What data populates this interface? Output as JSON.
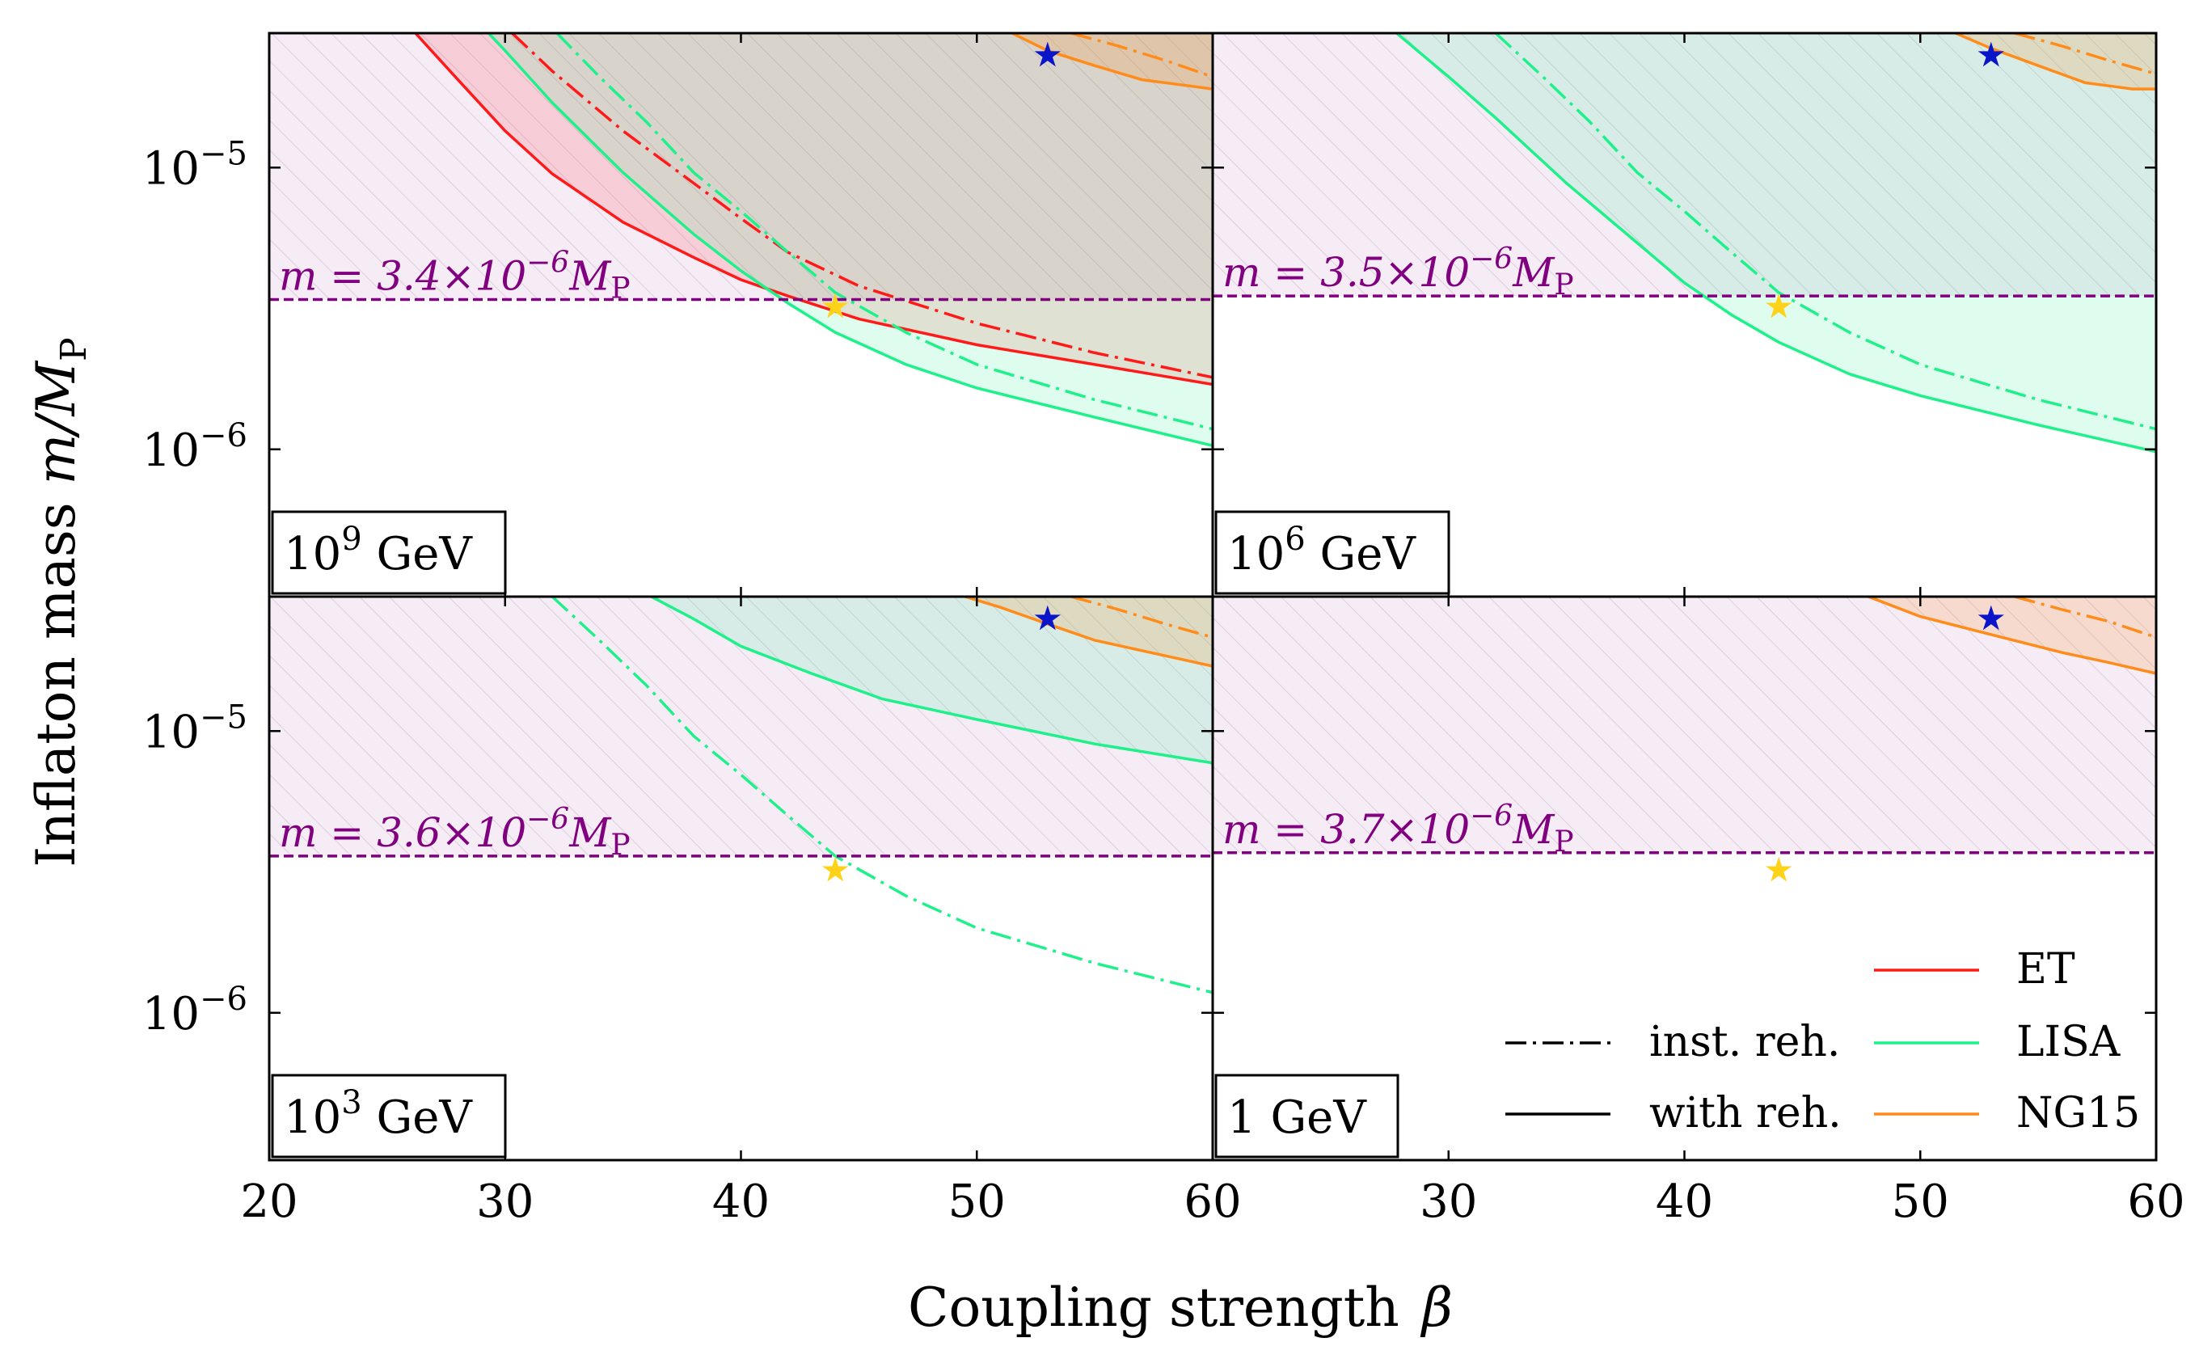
{
  "chart_data": {
    "type": "line",
    "layout": "2x2 panels, shared axes",
    "xlabel": "Coupling strength",
    "xlabel_symbol": "β",
    "ylabel": "Inflaton mass",
    "ylabel_symbol": "m/M",
    "ylabel_symbol_sub": "P",
    "xlim": [
      20,
      60
    ],
    "ylim": [
      3e-07,
      3e-05
    ],
    "yscale": "log",
    "x_ticks": [
      "20",
      "30",
      "40",
      "50",
      "60"
    ],
    "y_ticks": [
      {
        "base": "10",
        "exp": "−5",
        "value": 1e-05
      },
      {
        "base": "10",
        "exp": "−6",
        "value": 1e-06
      }
    ],
    "colors": {
      "ET": "#ff1a1a",
      "LISA": "#1ef08a",
      "NG15": "#ff8c1a",
      "reference": "#800080",
      "star_blue": "#0a14c8",
      "star_gold": "#ffd21a",
      "excluded_fill": "#f3e6f3"
    },
    "legend": {
      "placement": "bottom-right",
      "styles": [
        {
          "label": "inst. reh.",
          "dash": "dashdot"
        },
        {
          "label": "with reh.",
          "dash": "solid"
        }
      ],
      "detectors": [
        {
          "label": "ET",
          "color": "#ff1a1a"
        },
        {
          "label": "LISA",
          "color": "#1ef08a"
        },
        {
          "label": "NG15",
          "color": "#ff8c1a"
        }
      ]
    },
    "stars": [
      {
        "name": "blue-star",
        "x": 53,
        "y": 2.5e-05,
        "color": "#0a14c8"
      },
      {
        "name": "gold-star",
        "x": 44,
        "y": 3.2e-06,
        "color": "#ffd21a"
      }
    ],
    "panels": [
      {
        "tag_base": "10",
        "tag_exp": "9",
        "tag_unit": " GeV",
        "reference_prefix": "m = 3.4×10",
        "reference_exp": "−6",
        "reference_suffix": "M",
        "reference_sub": "P",
        "reference_value": 3.4e-06,
        "series": [
          {
            "name": "ET",
            "style": "solid",
            "color": "#ff1a1a",
            "x": [
              26.2,
              28,
              30,
              32,
              35,
              38,
              40,
              42,
              45,
              50,
              55,
              60
            ],
            "y": [
              3e-05,
              2.05e-05,
              1.35e-05,
              9.5e-06,
              6.4e-06,
              4.8e-06,
              4e-06,
              3.5e-06,
              2.9e-06,
              2.35e-06,
              2e-06,
              1.7e-06
            ]
          },
          {
            "name": "ET",
            "style": "dashdot",
            "color": "#ff1a1a",
            "x": [
              30.3,
              32,
              35,
              38,
              40,
              42,
              45,
              50,
              55,
              60
            ],
            "y": [
              3e-05,
              2.2e-05,
              1.35e-05,
              8.8e-06,
              6.6e-06,
              5e-06,
              3.8e-06,
              2.8e-06,
              2.2e-06,
              1.8e-06
            ]
          },
          {
            "name": "LISA",
            "style": "solid",
            "color": "#1ef08a",
            "x": [
              29.3,
              30,
              32,
              35,
              38,
              40,
              42,
              44,
              47,
              50,
              55,
              60
            ],
            "y": [
              3e-05,
              2.6e-05,
              1.7e-05,
              9.6e-06,
              5.8e-06,
              4.3e-06,
              3.3e-06,
              2.6e-06,
              2e-06,
              1.65e-06,
              1.3e-06,
              1.03e-06
            ]
          },
          {
            "name": "LISA",
            "style": "dashdot",
            "color": "#1ef08a",
            "x": [
              32.2,
              34,
              36,
              38,
              40,
              42,
              44,
              47,
              50,
              55,
              60
            ],
            "y": [
              3e-05,
              2.1e-05,
              1.45e-05,
              9.6e-06,
              7e-06,
              5e-06,
              3.6e-06,
              2.6e-06,
              2e-06,
              1.5e-06,
              1.18e-06
            ]
          },
          {
            "name": "NG15",
            "style": "solid",
            "color": "#ff8c1a",
            "x": [
              51.5,
              53,
              55,
              57,
              59,
              60
            ],
            "y": [
              3e-05,
              2.6e-05,
              2.3e-05,
              2.05e-05,
              1.95e-05,
              1.9e-05
            ]
          },
          {
            "name": "NG15",
            "style": "dashdot",
            "color": "#ff8c1a",
            "x": [
              54,
              56,
              58,
              60
            ],
            "y": [
              3e-05,
              2.7e-05,
              2.4e-05,
              2.1e-05
            ]
          }
        ],
        "fills": [
          {
            "color": "#ff1a1a",
            "opacity": 0.14,
            "under": 0
          },
          {
            "color": "#1ef08a",
            "opacity": 0.14,
            "under": 2
          },
          {
            "color": "#ff8c1a",
            "opacity": 0.18,
            "under": 4
          }
        ]
      },
      {
        "tag_base": "10",
        "tag_exp": "6",
        "tag_unit": " GeV",
        "reference_prefix": "m = 3.5×10",
        "reference_exp": "−6",
        "reference_suffix": "M",
        "reference_sub": "P",
        "reference_value": 3.5e-06,
        "series": [
          {
            "name": "LISA",
            "style": "solid",
            "color": "#1ef08a",
            "x": [
              27.8,
              30,
              32,
              35,
              38,
              40,
              42,
              44,
              47,
              50,
              55,
              60
            ],
            "y": [
              3e-05,
              2.1e-05,
              1.5e-05,
              8.8e-06,
              5.4e-06,
              3.9e-06,
              3e-06,
              2.4e-06,
              1.85e-06,
              1.55e-06,
              1.22e-06,
              9.8e-07
            ]
          },
          {
            "name": "LISA",
            "style": "dashdot",
            "color": "#1ef08a",
            "x": [
              32.0,
              34,
              36,
              38,
              40,
              42,
              44,
              47,
              50,
              55,
              60
            ],
            "y": [
              3e-05,
              2.1e-05,
              1.45e-05,
              9.6e-06,
              7e-06,
              5e-06,
              3.6e-06,
              2.6e-06,
              2e-06,
              1.5e-06,
              1.18e-06
            ]
          },
          {
            "name": "NG15",
            "style": "solid",
            "color": "#ff8c1a",
            "x": [
              51.5,
              53,
              55,
              57,
              58,
              59,
              60
            ],
            "y": [
              3e-05,
              2.65e-05,
              2.3e-05,
              2e-05,
              1.95e-05,
              1.9e-05,
              1.9e-05
            ]
          },
          {
            "name": "NG15",
            "style": "dashdot",
            "color": "#ff8c1a",
            "x": [
              54,
              56,
              58,
              60
            ],
            "y": [
              3e-05,
              2.7e-05,
              2.4e-05,
              2.15e-05
            ]
          }
        ],
        "fills": [
          {
            "color": "#1ef08a",
            "opacity": 0.14,
            "under": 0
          },
          {
            "color": "#ff8c1a",
            "opacity": 0.18,
            "under": 2
          }
        ]
      },
      {
        "tag_base": "10",
        "tag_exp": "3",
        "tag_unit": " GeV",
        "reference_prefix": "m = 3.6×10",
        "reference_exp": "−6",
        "reference_suffix": "M",
        "reference_sub": "P",
        "reference_value": 3.6e-06,
        "series": [
          {
            "name": "LISA",
            "style": "solid",
            "color": "#1ef08a",
            "x": [
              36.2,
              38,
              40,
              43,
              46,
              50,
              55,
              60
            ],
            "y": [
              3e-05,
              2.5e-05,
              2e-05,
              1.6e-05,
              1.3e-05,
              1.1e-05,
              9e-06,
              7.7e-06
            ]
          },
          {
            "name": "LISA",
            "style": "dashdot",
            "color": "#1ef08a",
            "x": [
              32.0,
              34,
              36,
              38,
              40,
              42,
              44,
              47,
              50,
              55,
              60
            ],
            "y": [
              3e-05,
              2.1e-05,
              1.45e-05,
              9.6e-06,
              7e-06,
              5e-06,
              3.6e-06,
              2.6e-06,
              2e-06,
              1.5e-06,
              1.18e-06
            ]
          },
          {
            "name": "NG15",
            "style": "solid",
            "color": "#ff8c1a",
            "x": [
              49.5,
              51,
              53,
              55,
              58,
              60
            ],
            "y": [
              3e-05,
              2.75e-05,
              2.4e-05,
              2.1e-05,
              1.85e-05,
              1.7e-05
            ]
          },
          {
            "name": "NG15",
            "style": "dashdot",
            "color": "#ff8c1a",
            "x": [
              54,
              56,
              58,
              60
            ],
            "y": [
              3e-05,
              2.7e-05,
              2.4e-05,
              2.15e-05
            ]
          }
        ],
        "fills": [
          {
            "color": "#1ef08a",
            "opacity": 0.14,
            "under": 0
          },
          {
            "color": "#ff8c1a",
            "opacity": 0.18,
            "under": 2
          }
        ]
      },
      {
        "tag_base": "1",
        "tag_exp": "",
        "tag_unit": " GeV",
        "reference_prefix": "m = 3.7×10",
        "reference_exp": "−6",
        "reference_suffix": "M",
        "reference_sub": "P",
        "reference_value": 3.7e-06,
        "series": [
          {
            "name": "NG15",
            "style": "solid",
            "color": "#ff8c1a",
            "x": [
              47.8,
              50,
              53,
              56,
              58,
              60
            ],
            "y": [
              3e-05,
              2.55e-05,
              2.2e-05,
              1.9e-05,
              1.75e-05,
              1.6e-05
            ]
          },
          {
            "name": "NG15",
            "style": "dashdot",
            "color": "#ff8c1a",
            "x": [
              54,
              56,
              58,
              60
            ],
            "y": [
              3e-05,
              2.7e-05,
              2.45e-05,
              2.15e-05
            ]
          }
        ],
        "fills": [
          {
            "color": "#ff8c1a",
            "opacity": 0.18,
            "under": 0
          }
        ]
      }
    ]
  }
}
